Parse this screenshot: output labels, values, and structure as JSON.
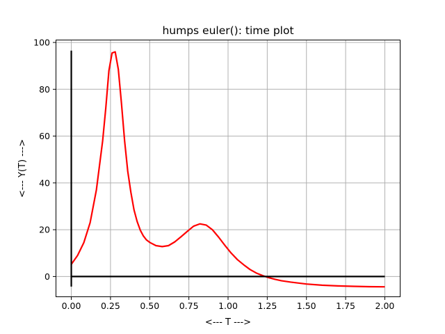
{
  "chart_data": {
    "type": "line",
    "title": "humps euler(): time plot",
    "xlabel": "<--- T --->",
    "ylabel": "<--- Y(T) --->",
    "xlim": [
      -0.1,
      2.1
    ],
    "ylim": [
      -8.8,
      101.2
    ],
    "xticks": [
      0.0,
      0.25,
      0.5,
      0.75,
      1.0,
      1.25,
      1.5,
      1.75,
      2.0
    ],
    "xtick_labels": [
      "0.00",
      "0.25",
      "0.50",
      "0.75",
      "1.00",
      "1.25",
      "1.50",
      "1.75",
      "2.00"
    ],
    "yticks": [
      0,
      20,
      40,
      60,
      80,
      100
    ],
    "ytick_labels": [
      "0",
      "20",
      "40",
      "60",
      "80",
      "100"
    ],
    "grid": true,
    "series": [
      {
        "color": "#ff0000",
        "x": [
          0.0,
          0.04,
          0.08,
          0.12,
          0.16,
          0.2,
          0.22,
          0.24,
          0.26,
          0.28,
          0.3,
          0.32,
          0.34,
          0.36,
          0.38,
          0.4,
          0.42,
          0.44,
          0.46,
          0.48,
          0.5,
          0.54,
          0.58,
          0.62,
          0.66,
          0.7,
          0.74,
          0.78,
          0.82,
          0.86,
          0.9,
          0.94,
          0.98,
          1.02,
          1.06,
          1.1,
          1.14,
          1.18,
          1.22,
          1.26,
          1.3,
          1.34,
          1.4,
          1.5,
          1.6,
          1.7,
          1.8,
          1.9,
          2.0
        ],
        "y": [
          5.2,
          9.0,
          14.5,
          23.0,
          37.0,
          58.0,
          72.0,
          88.0,
          95.5,
          96.0,
          88.5,
          74.0,
          58.0,
          45.0,
          36.0,
          28.5,
          23.5,
          19.8,
          17.3,
          15.6,
          14.6,
          13.2,
          12.8,
          13.2,
          14.8,
          17.0,
          19.3,
          21.5,
          22.5,
          22.0,
          20.0,
          16.8,
          13.3,
          10.0,
          7.2,
          5.0,
          3.0,
          1.5,
          0.4,
          -0.5,
          -1.2,
          -1.8,
          -2.4,
          -3.2,
          -3.7,
          -4.0,
          -4.2,
          -4.35,
          -4.4
        ]
      },
      {
        "color": "#000000",
        "x": [
          0.0,
          2.0
        ],
        "y": [
          0.0,
          0.0
        ]
      },
      {
        "color": "#000000",
        "x": [
          0.0,
          0.0
        ],
        "y": [
          -4.3,
          96.5
        ]
      }
    ]
  }
}
